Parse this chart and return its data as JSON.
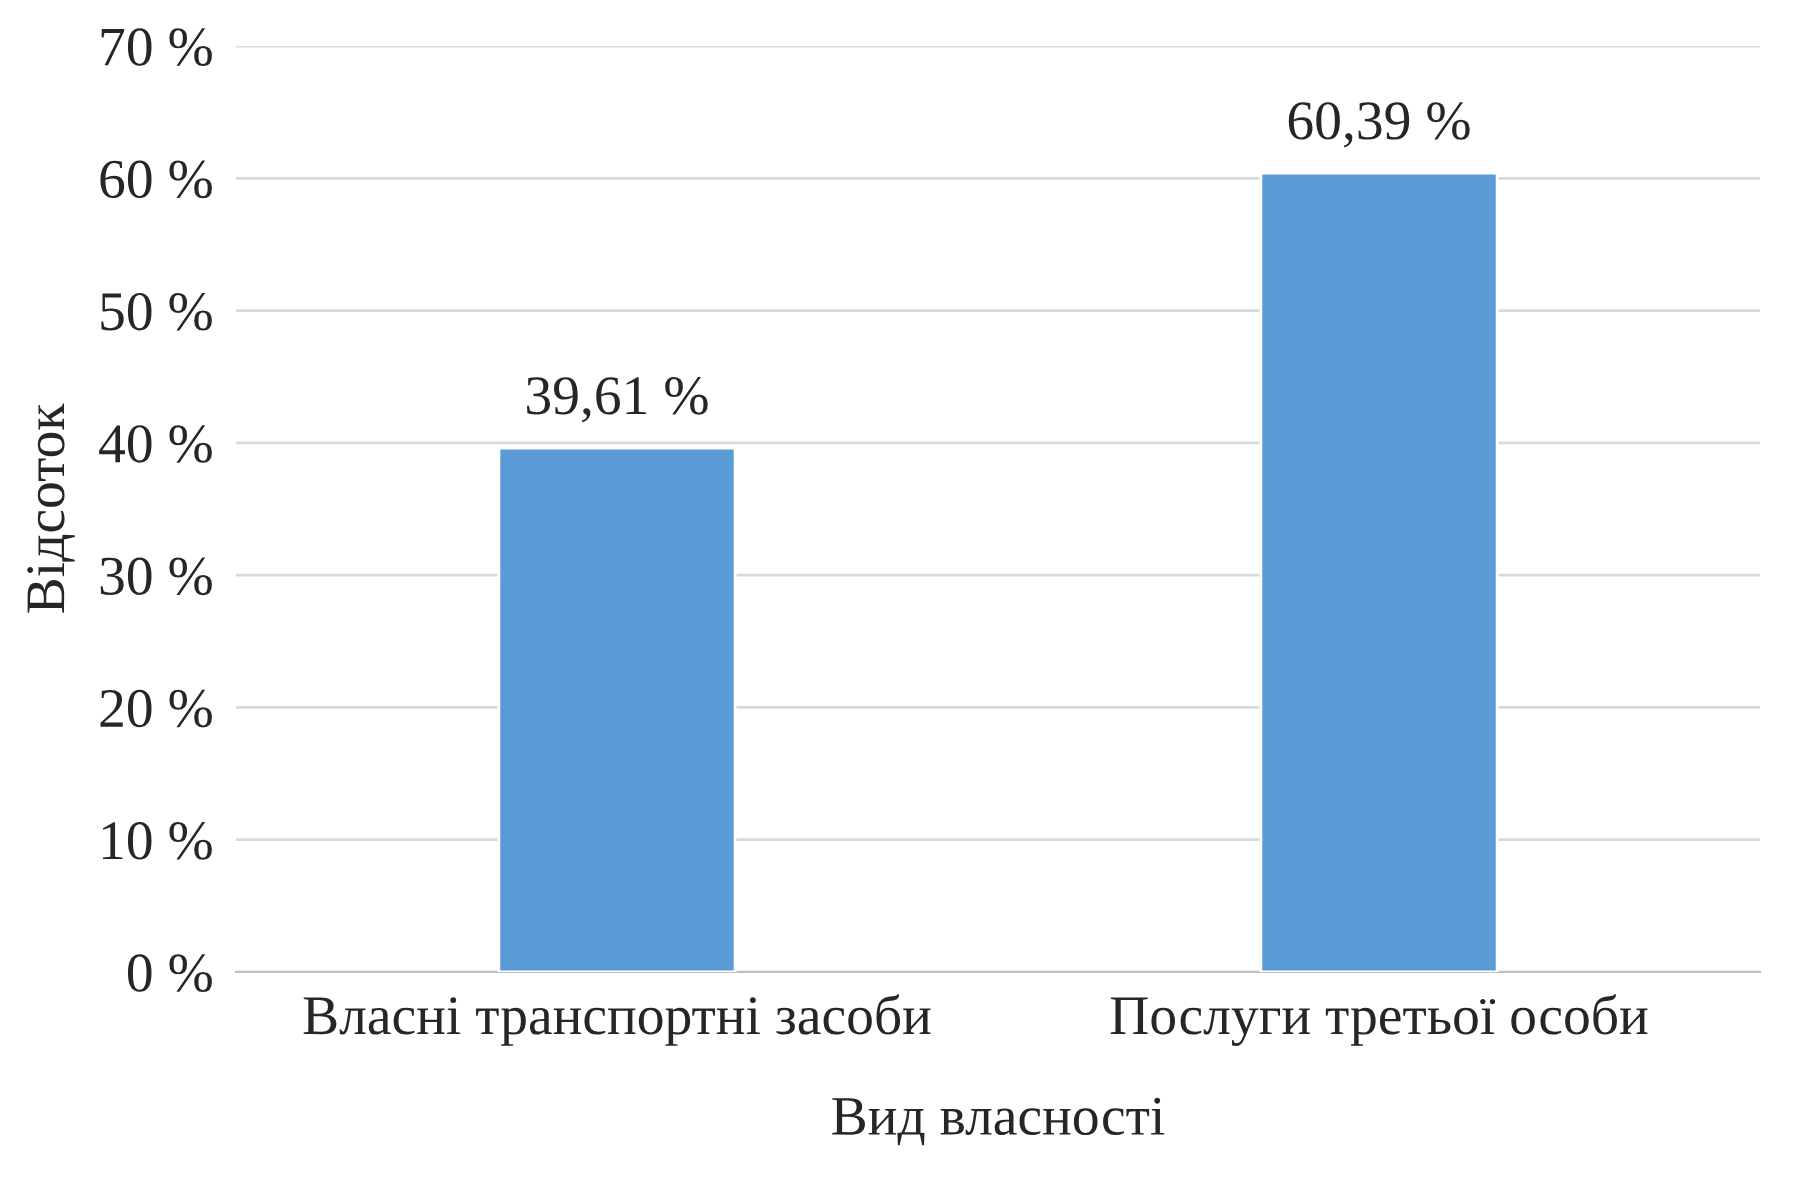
{
  "chart_data": {
    "type": "bar",
    "xlabel": "Вид власності",
    "ylabel": "Відсоток",
    "categories": [
      "Власні транспортні засоби",
      "Послуги третьої особи"
    ],
    "values": [
      39.61,
      60.39
    ],
    "color": "#5b9bd5",
    "value_labels": [
      "39,61 %",
      "60,39 %"
    ],
    "ylim": [
      0,
      70
    ],
    "yticks": [
      {
        "value": 0,
        "label": "0 %"
      },
      {
        "value": 10,
        "label": "10 %"
      },
      {
        "value": 20,
        "label": "20 %"
      },
      {
        "value": 30,
        "label": "30 %"
      },
      {
        "value": 40,
        "label": "40 %"
      },
      {
        "value": 50,
        "label": "50 %"
      },
      {
        "value": 60,
        "label": "60 %"
      },
      {
        "value": 70,
        "label": "70 %"
      }
    ],
    "grid": "y",
    "legend": false
  }
}
